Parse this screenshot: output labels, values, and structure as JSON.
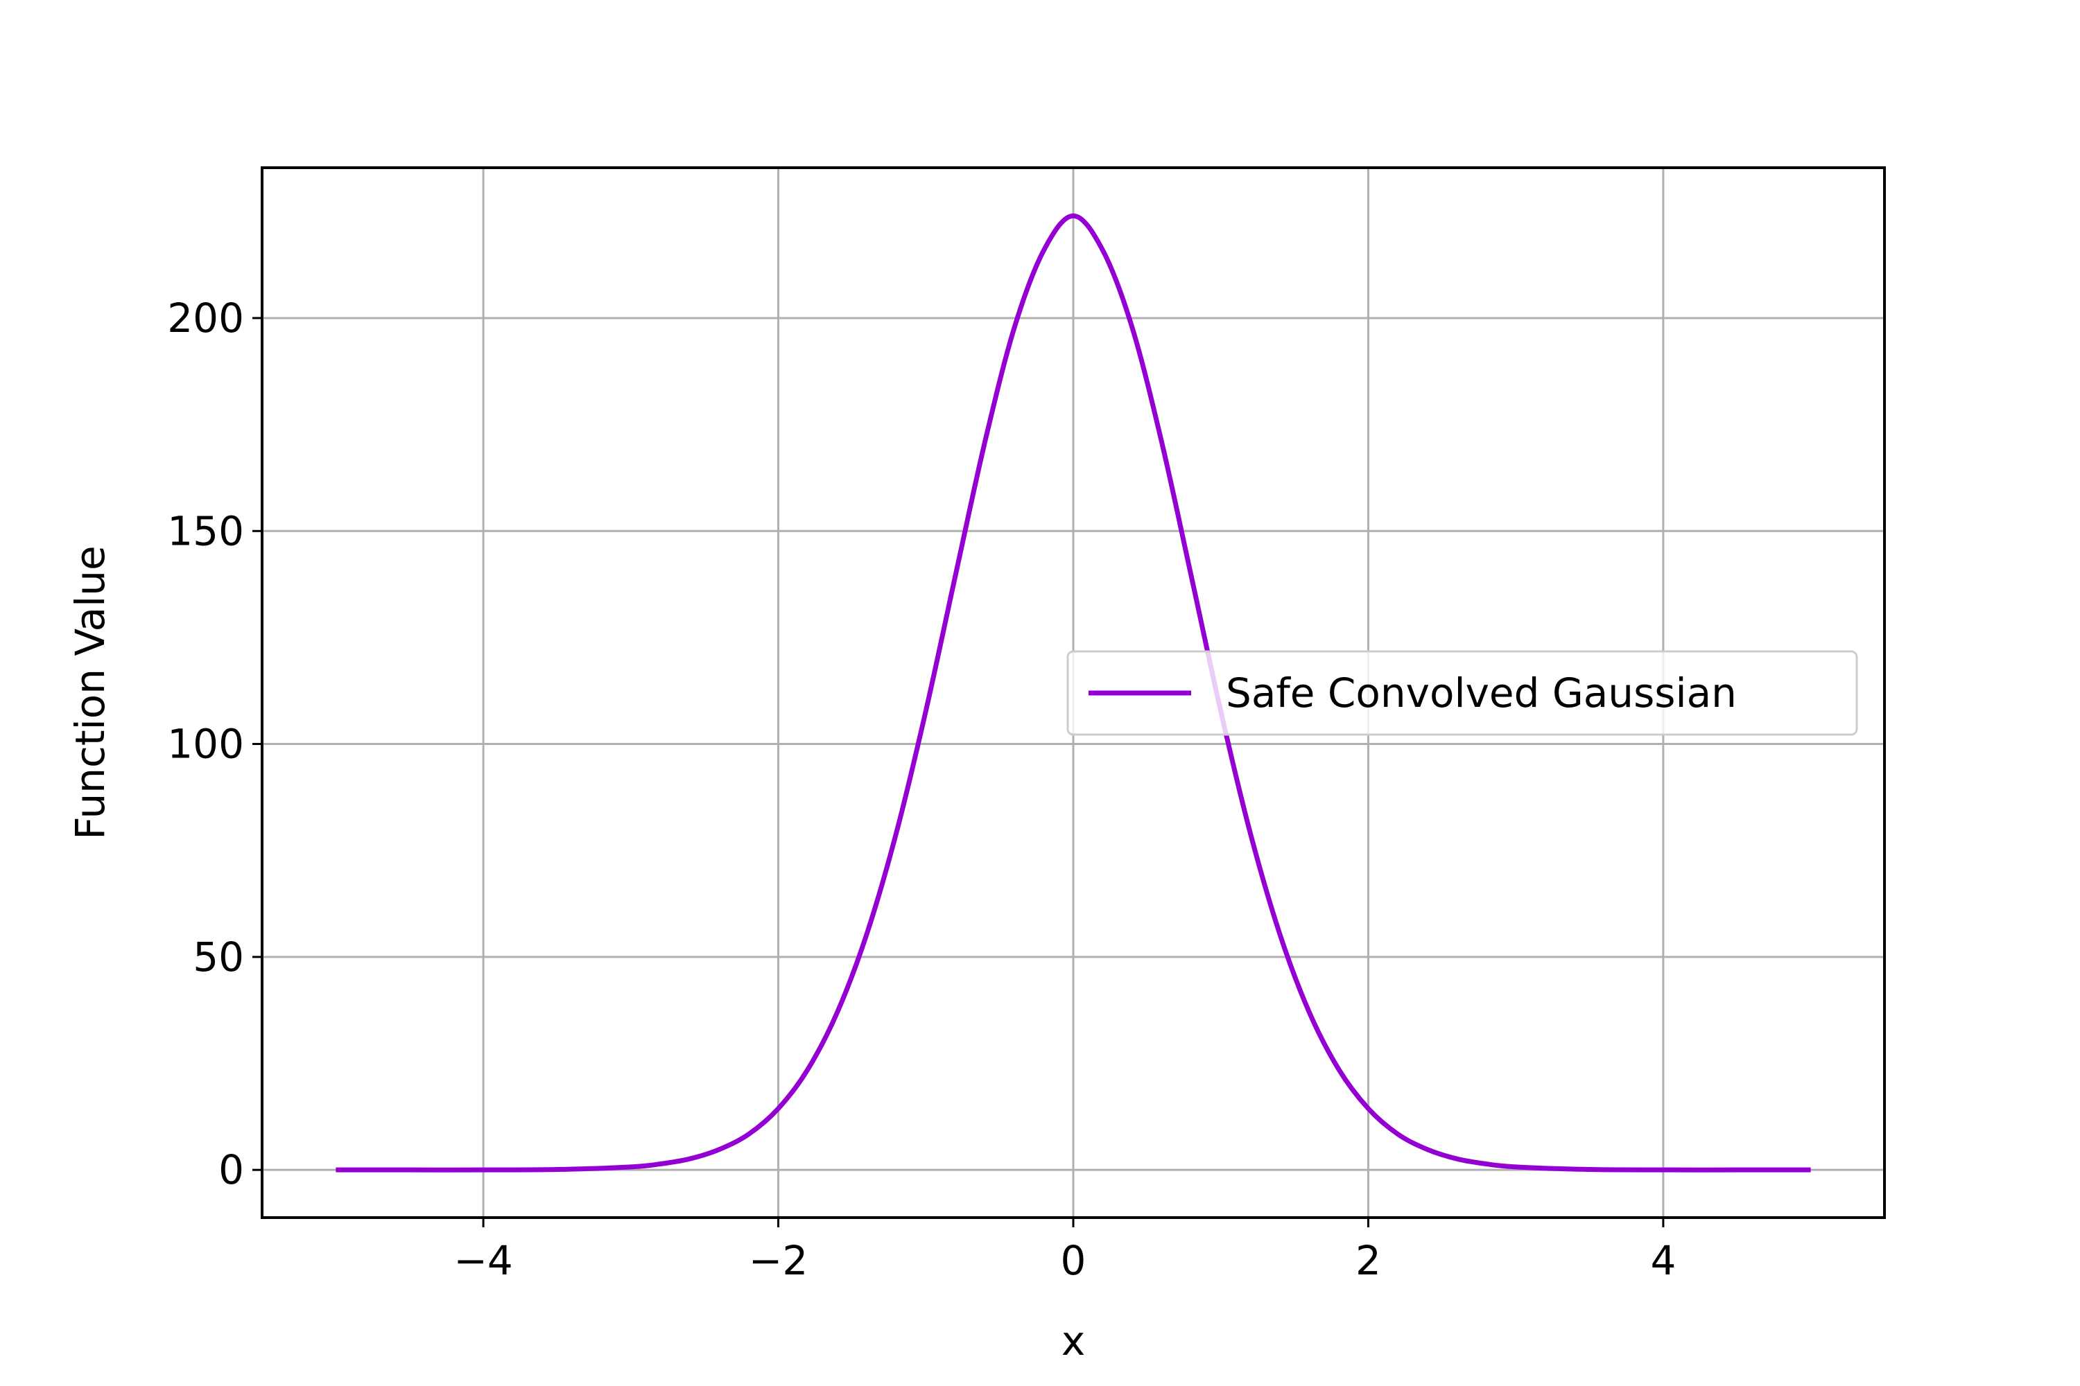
{
  "chart_data": {
    "type": "line",
    "title": "",
    "xlabel": "x",
    "ylabel": "Function Value",
    "xlim": [
      -5.5,
      5.5
    ],
    "ylim": [
      -11.2,
      235.3
    ],
    "x_ticks": [
      -4,
      -2,
      0,
      2,
      4
    ],
    "x_tick_labels": [
      "−4",
      "−2",
      "0",
      "2",
      "4"
    ],
    "y_ticks": [
      0,
      50,
      100,
      150,
      200
    ],
    "y_tick_labels": [
      "0",
      "50",
      "100",
      "150",
      "200"
    ],
    "grid": true,
    "legend_position": "center-right",
    "series": [
      {
        "name": "Safe Convolved Gaussian",
        "color": "#9400d3",
        "x": [
          -5,
          -4.5,
          -4,
          -3.5,
          -3,
          -2.8,
          -2.6,
          -2.4,
          -2.2,
          -2,
          -1.8,
          -1.6,
          -1.4,
          -1.2,
          -1,
          -0.8,
          -0.6,
          -0.4,
          -0.2,
          0,
          0.2,
          0.4,
          0.6,
          0.8,
          1,
          1.2,
          1.4,
          1.6,
          1.8,
          2,
          2.2,
          2.4,
          2.6,
          2.8,
          3,
          3.5,
          4,
          4.5,
          5
        ],
        "y": [
          0,
          0,
          0,
          0.1,
          0.7,
          1.4,
          2.6,
          4.8,
          8.4,
          14.4,
          23.6,
          37.0,
          55.4,
          79.1,
          107.7,
          139.4,
          170.8,
          197.7,
          215.9,
          224.0,
          215.9,
          197.7,
          170.8,
          139.4,
          107.7,
          79.1,
          55.4,
          37.0,
          23.6,
          14.4,
          8.4,
          4.8,
          2.6,
          1.4,
          0.7,
          0.1,
          0,
          0,
          0
        ]
      }
    ]
  }
}
